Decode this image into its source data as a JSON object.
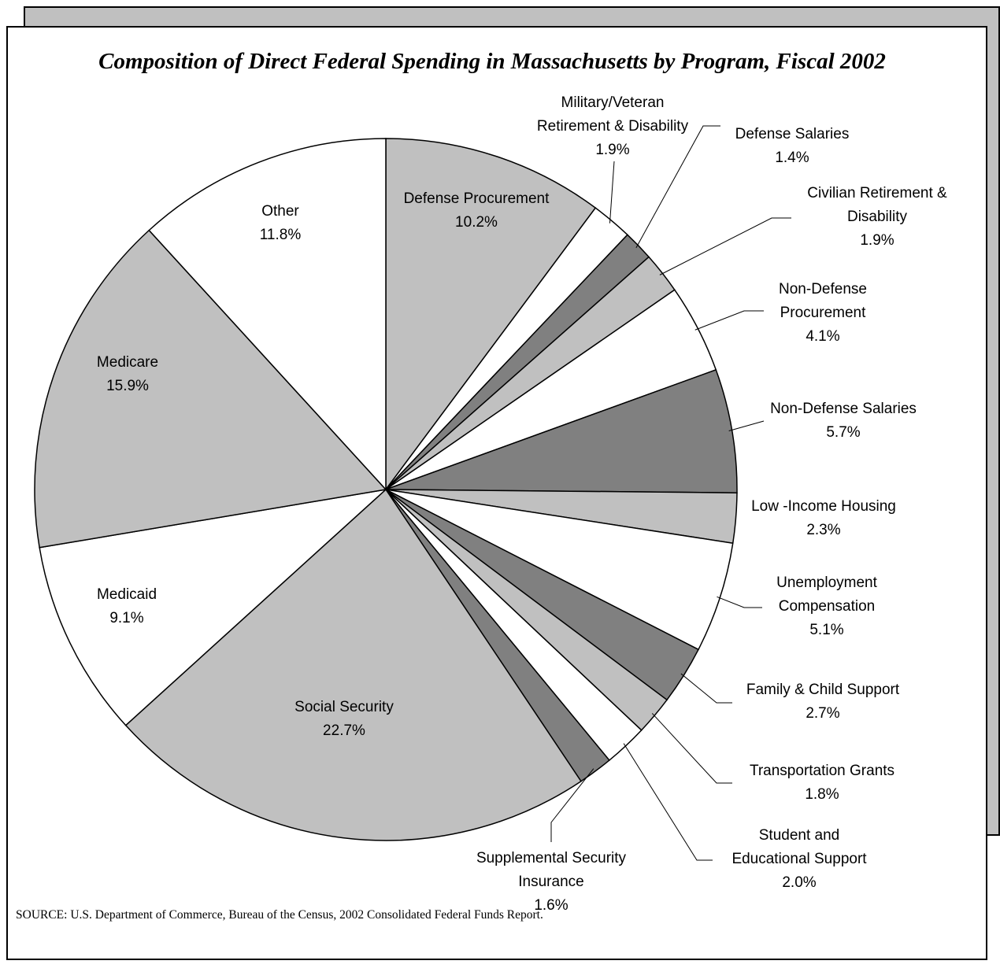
{
  "chart_data": {
    "type": "pie",
    "title": "Composition of Direct Federal Spending in Massachusetts by Program, Fiscal 2002",
    "categories": [
      "Defense Procurement",
      "Military/Veteran\nRetirement & Disability",
      "Defense Salaries",
      "Civilian Retirement &\nDisability",
      "Non-Defense\nProcurement",
      "Non-Defense Salaries",
      "Low -Income Housing",
      "Unemployment\nCompensation",
      "Family & Child Support",
      "Transportation Grants",
      "Student and\nEducational Support",
      "Supplemental Security\nInsurance",
      "Social Security",
      "Medicaid",
      "Medicare",
      "Other"
    ],
    "values": [
      10.2,
      1.9,
      1.4,
      1.9,
      4.1,
      5.7,
      2.3,
      5.1,
      2.7,
      1.8,
      2.0,
      1.6,
      22.7,
      9.1,
      15.9,
      11.8
    ],
    "value_labels": [
      "10.2%",
      "1.9%",
      "1.4%",
      "1.9%",
      "4.1%",
      "5.7%",
      "2.3%",
      "5.1%",
      "2.7%",
      "1.8%",
      "2.0%",
      "1.6%",
      "22.7%",
      "9.1%",
      "15.9%",
      "11.8%"
    ],
    "colors": [
      "#c0c0c0",
      "#ffffff",
      "#808080",
      "#c0c0c0",
      "#ffffff",
      "#808080",
      "#c0c0c0",
      "#ffffff",
      "#808080",
      "#c0c0c0",
      "#ffffff",
      "#808080",
      "#c0c0c0",
      "#ffffff",
      "#c0c0c0",
      "#ffffff"
    ],
    "source": "SOURCE: U.S. Department of Commerce, Bureau of the Census, 2002 Consolidated Federal Funds Report."
  }
}
